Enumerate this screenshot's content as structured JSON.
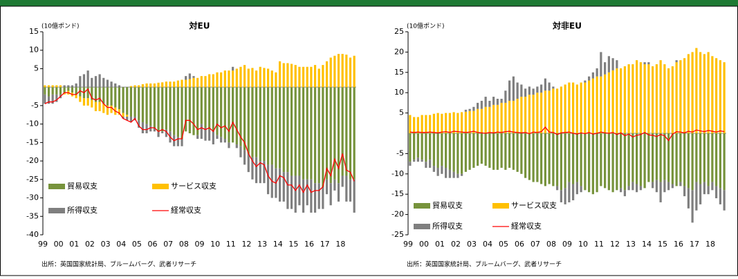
{
  "chart_data": [
    {
      "type": "bar",
      "title": "対EU",
      "y_label": "(10億ポンド)",
      "source": "出所：英国国家統計局、ブルームバーグ、武者リサーチ",
      "categories": [
        "99",
        null,
        null,
        null,
        "00",
        null,
        null,
        null,
        "01",
        null,
        null,
        null,
        "02",
        null,
        null,
        null,
        "03",
        null,
        null,
        null,
        "04",
        null,
        null,
        null,
        "05",
        null,
        null,
        null,
        "06",
        null,
        null,
        null,
        "07",
        null,
        null,
        null,
        "08",
        null,
        null,
        null,
        "09",
        null,
        null,
        null,
        "10",
        null,
        null,
        null,
        "11",
        null,
        null,
        null,
        "12",
        null,
        null,
        null,
        "13",
        null,
        null,
        null,
        "14",
        null,
        null,
        null,
        "15",
        null,
        null,
        null,
        "16",
        null,
        null,
        null,
        "17",
        null,
        null,
        null,
        "18",
        null,
        null,
        null
      ],
      "ylim": [
        -40,
        15
      ],
      "yticks": [
        15,
        10,
        5,
        -5,
        -10,
        -15,
        -20,
        -25,
        -30,
        -35,
        -40
      ],
      "legend": "lower left",
      "series": [
        {
          "name": "貿易収支",
          "color": "#77933c",
          "values": [
            -2,
            -2.5,
            -2,
            -2,
            -2,
            -1.5,
            -1,
            -1.5,
            -2,
            -2.5,
            -3,
            -3,
            -3.5,
            -4,
            -4,
            -4.5,
            -5,
            -5,
            -5.5,
            -6,
            -7,
            -7.5,
            -8,
            -8,
            -9,
            -9.5,
            -10,
            -10.5,
            -11,
            -12,
            -12,
            -11.5,
            -12,
            -13,
            -13.5,
            -14,
            -12,
            -12.5,
            -13,
            -13,
            -10,
            -11,
            -11.5,
            -12,
            -13,
            -13.5,
            -14,
            -15,
            -15,
            -15.5,
            -16,
            -17,
            -18,
            -19,
            -19,
            -20,
            -20,
            -21,
            -21,
            -22,
            -22,
            -23,
            -23,
            -24,
            -24,
            -24,
            -25,
            -25,
            -25,
            -26,
            -26,
            -27,
            -25,
            -26,
            -25,
            -26,
            -24,
            -24,
            -25,
            -25
          ]
        },
        {
          "name": "サービス収支",
          "color": "#ffc000",
          "values": [
            0.5,
            0.5,
            0.5,
            0.5,
            0.5,
            -0.5,
            -1,
            -1,
            -1,
            -1.5,
            -2,
            -2,
            -2,
            -2.5,
            -2.5,
            -2.5,
            -2.5,
            -2,
            -2,
            -1.5,
            -1,
            -0.5,
            0.3,
            0.5,
            0.5,
            0.8,
            1,
            1,
            1,
            1.2,
            1.3,
            1.5,
            1.5,
            1.5,
            1.8,
            2,
            2,
            2.2,
            2.5,
            2.5,
            3,
            3,
            3.5,
            3.5,
            4,
            4,
            4.5,
            4.5,
            4.5,
            5,
            5.5,
            6,
            5,
            5.2,
            4.5,
            5.5,
            5.2,
            5,
            4.5,
            4,
            7,
            6.5,
            6.5,
            6.3,
            6,
            5.5,
            5.5,
            5.5,
            5.5,
            6,
            5,
            6,
            7,
            8,
            8.5,
            9,
            9,
            8.8,
            8,
            8.5
          ]
        },
        {
          "name": "所得収支",
          "color": "#7f7f7f",
          "values": [
            -2.5,
            -2,
            -2.5,
            -2,
            -1,
            0.5,
            0.5,
            0.5,
            1,
            3,
            3.5,
            4.5,
            2.5,
            3,
            3.5,
            2.5,
            2,
            1.5,
            1,
            0.5,
            -0.5,
            -1,
            -1.5,
            -1,
            -2,
            -3,
            -2.5,
            -1.5,
            -1,
            -1.5,
            -0.5,
            -2,
            -3,
            -3,
            -2.5,
            -2,
            1,
            1.5,
            0.5,
            -1,
            -4,
            -3.5,
            -3,
            -3.5,
            -1,
            -1.5,
            -1,
            -1.5,
            1,
            -1,
            -3,
            -4,
            -5,
            -6,
            -7,
            -6,
            -6,
            -8,
            -9,
            -8,
            -9,
            -8,
            -10,
            -9,
            -10,
            -8,
            -9,
            -7,
            -9,
            -8,
            -7,
            -6,
            -4,
            -6,
            -3,
            -5,
            -3,
            -7,
            -6,
            -9
          ]
        },
        {
          "name": "経常収支",
          "color": "#ff0000",
          "type": "line",
          "values": [
            -4.5,
            -4,
            -4,
            -3.5,
            -2.5,
            -1.5,
            -1.5,
            -2,
            -2,
            -1,
            -1.5,
            -0.5,
            -3,
            -3.5,
            -3,
            -4.5,
            -5.5,
            -5.5,
            -6.5,
            -7,
            -8.5,
            -9,
            -9.5,
            -8.5,
            -10.5,
            -11.5,
            -11.5,
            -11,
            -11,
            -12,
            -11.5,
            -12,
            -13.5,
            -14.5,
            -14,
            -14,
            -9,
            -9,
            -10,
            -11.5,
            -11,
            -11.5,
            -11,
            -12,
            -10,
            -11,
            -10.5,
            -12,
            -9.5,
            -11.5,
            -13.5,
            -15,
            -18,
            -20,
            -21.5,
            -20.5,
            -21,
            -24,
            -25.5,
            -26,
            -24,
            -24.5,
            -26.5,
            -26.5,
            -28,
            -26.5,
            -28.5,
            -26.5,
            -28.5,
            -28,
            -28,
            -27,
            -22,
            -24,
            -19.5,
            -22,
            -18,
            -22.5,
            -23,
            -25.5
          ]
        }
      ]
    },
    {
      "type": "bar",
      "title": "対非EU",
      "y_label": "(10億ポンド)",
      "source": "出所：英国国家統計局、ブルームバーグ、武者リサーチ",
      "categories": [
        "99",
        null,
        null,
        null,
        "00",
        null,
        null,
        null,
        "01",
        null,
        null,
        null,
        "02",
        null,
        null,
        null,
        "03",
        null,
        null,
        null,
        "04",
        null,
        null,
        null,
        "05",
        null,
        null,
        null,
        "06",
        null,
        null,
        null,
        "07",
        null,
        null,
        null,
        "08",
        null,
        null,
        null,
        "09",
        null,
        null,
        null,
        "10",
        null,
        null,
        null,
        "11",
        null,
        null,
        null,
        "12",
        null,
        null,
        null,
        "13",
        null,
        null,
        null,
        "14",
        null,
        null,
        null,
        "15",
        null,
        null,
        null,
        "16",
        null,
        null,
        null,
        "17",
        null,
        null,
        null,
        "18",
        null,
        null,
        null
      ],
      "ylim": [
        -25,
        25
      ],
      "yticks": [
        25,
        20,
        15,
        10,
        5,
        -5,
        -10,
        -15,
        -20,
        -25
      ],
      "legend": "lower left",
      "series": [
        {
          "name": "貿易収支",
          "color": "#77933c",
          "values": [
            -7,
            -6.5,
            -6,
            -6.5,
            -7,
            -6.5,
            -8,
            -8.5,
            -8,
            -8.5,
            -9,
            -9.5,
            -10,
            -10,
            -9.5,
            -9,
            -8.5,
            -8,
            -7.5,
            -8,
            -8.5,
            -9,
            -9,
            -8.5,
            -9,
            -8.5,
            -9,
            -9.5,
            -10,
            -11,
            -11.5,
            -12,
            -12,
            -12.5,
            -13,
            -12.5,
            -13,
            -13,
            -14,
            -13.5,
            -12,
            -12.5,
            -12,
            -13,
            -14,
            -14.5,
            -15,
            -14.5,
            -13,
            -13.5,
            -14,
            -14.5,
            -14,
            -13.5,
            -14,
            -13,
            -12,
            -12.5,
            -13,
            -13.5,
            -12,
            -12,
            -11.5,
            -12,
            -11.5,
            -12,
            -12.5,
            -13,
            -12,
            -13,
            -13.5,
            -14,
            -12,
            -12.5,
            -12,
            -13,
            -12,
            -13,
            -13.5,
            -14
          ]
        },
        {
          "name": "サービス収支",
          "color": "#ffc000",
          "values": [
            4.5,
            4,
            4,
            4.5,
            4.5,
            4.5,
            4.8,
            5,
            4.8,
            5,
            5,
            5.2,
            5,
            5.2,
            5.3,
            5.5,
            5.5,
            6,
            6,
            6.5,
            6.5,
            7,
            7,
            7.5,
            7.5,
            8,
            8,
            8.5,
            9,
            9,
            9.5,
            9.5,
            10,
            10,
            10.5,
            10.5,
            11,
            11,
            11.5,
            12,
            12.5,
            12.5,
            12,
            12.5,
            12.5,
            13,
            13.5,
            14,
            14,
            14.5,
            15,
            15.5,
            16,
            16,
            16.5,
            17,
            17,
            18,
            17.5,
            17,
            17,
            16.5,
            17,
            18,
            17,
            16,
            16.5,
            17.5,
            18,
            18.5,
            19.5,
            20,
            21,
            20,
            19.5,
            20,
            19,
            18.5,
            18,
            17.5
          ]
        },
        {
          "name": "所得収支",
          "color": "#7f7f7f",
          "values": [
            -1,
            -0.5,
            -1,
            -0.5,
            -1.5,
            -2,
            -1.5,
            -2,
            -2,
            -2.5,
            -2,
            -1.5,
            -1,
            -0.5,
            0.5,
            0.5,
            1,
            1.5,
            2,
            2.5,
            1.5,
            2,
            1.5,
            1,
            3,
            5,
            6,
            4,
            3,
            2,
            2,
            1.5,
            1.5,
            2,
            3,
            2,
            0.5,
            -1,
            -3,
            -4,
            -5,
            -4,
            -3,
            -1.5,
            0.5,
            1,
            1.5,
            2,
            6,
            3,
            4,
            3,
            2,
            -1,
            -1.5,
            -1,
            -2,
            -2,
            -1,
            0.5,
            0.5,
            -1.5,
            -3,
            -5,
            -3,
            -2,
            -1,
            0.5,
            -1,
            -2.5,
            -5,
            -8,
            -7,
            -5,
            -3,
            -2,
            -2,
            -3,
            -4,
            -5
          ]
        },
        {
          "name": "経常収支",
          "color": "#ff0000",
          "type": "line",
          "values": [
            0.3,
            0.2,
            0.3,
            0.2,
            0.2,
            0.3,
            0.2,
            0.1,
            0.3,
            0.4,
            0.2,
            0.5,
            0.4,
            0.3,
            0.2,
            0.3,
            0.5,
            0.2,
            0.1,
            0,
            0.2,
            0.1,
            0.3,
            0.2,
            0.4,
            0.5,
            0.3,
            0.2,
            0.1,
            0.2,
            -0.1,
            0.3,
            0.2,
            0.4,
            1.5,
            0.3,
            0.2,
            -0.3,
            0.1,
            0.2,
            0.3,
            0,
            -0.2,
            0.1,
            -0.1,
            0.2,
            -0.2,
            0,
            0.3,
            0.1,
            0,
            0.2,
            -0.3,
            0.1,
            -0.6,
            -0.2,
            -0.9,
            -0.5,
            -0.3,
            0.2,
            -0.4,
            -0.5,
            -0.8,
            -0.3,
            -0.6,
            -1.8,
            -0.2,
            0.4,
            0.3,
            0.1,
            0.5,
            0.3,
            0.8,
            0.6,
            0.4,
            0.7,
            0.5,
            0.3,
            0.6,
            0.4
          ]
        }
      ]
    }
  ]
}
